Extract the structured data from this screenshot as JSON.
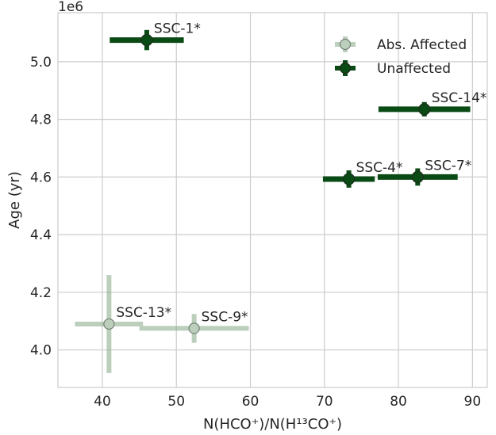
{
  "chart_data": {
    "type": "scatter",
    "title": "",
    "xlabel": "N(HCO⁺)/N(H¹³CO⁺)",
    "ylabel": "Age (yr)",
    "y_scale_label": "1e6",
    "xlim": [
      34,
      92
    ],
    "ylim": [
      3.87,
      5.17
    ],
    "x_ticks": [
      40,
      50,
      60,
      70,
      80,
      90
    ],
    "y_ticks": [
      4.0,
      4.2,
      4.4,
      4.6,
      4.8,
      5.0
    ],
    "y_tick_labels": [
      "4.0",
      "4.2",
      "4.4",
      "4.6",
      "4.8",
      "5.0"
    ],
    "grid": true,
    "legend_position": "top-right",
    "series": [
      {
        "name": "Abs. Affected",
        "color": "#8fb090",
        "alpha": 0.6,
        "points": [
          {
            "label": "SSC-13*",
            "x": 40.9,
            "xerr": 4.6,
            "y": 4.09,
            "yerr": 0.17
          },
          {
            "label": "SSC-9*",
            "x": 52.4,
            "xerr": 7.4,
            "y": 4.075,
            "yerr": 0.05
          }
        ]
      },
      {
        "name": "Unaffected",
        "color": "#0a4a14",
        "alpha": 1.0,
        "points": [
          {
            "label": "SSC-1*",
            "x": 46.0,
            "xerr": 5.0,
            "y": 5.075,
            "yerr": 0.035
          },
          {
            "label": "SSC-14*",
            "x": 83.5,
            "xerr": 6.2,
            "y": 4.835,
            "yerr": 0.025
          },
          {
            "label": "SSC-4*",
            "x": 73.3,
            "xerr": 3.5,
            "y": 4.593,
            "yerr": 0.03
          },
          {
            "label": "SSC-7*",
            "x": 82.6,
            "xerr": 5.4,
            "y": 4.6,
            "yerr": 0.03
          }
        ]
      }
    ]
  }
}
